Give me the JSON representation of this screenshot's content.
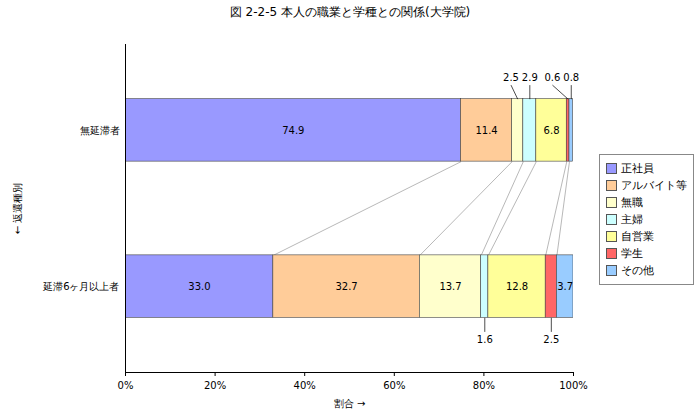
{
  "chart_data": {
    "type": "bar",
    "orientation": "horizontal",
    "stacked": true,
    "title": "図 2-2-5 本人の職業と学種との関係(大学院)",
    "x_label": "割合",
    "y_label": "返還種別",
    "categories": [
      "無延滞者",
      "延滞6ヶ月以上者"
    ],
    "series": [
      {
        "name": "正社員",
        "color": "#9999ff",
        "values": [
          74.9,
          33.0
        ],
        "value_labels": [
          "74.9",
          "33.0"
        ]
      },
      {
        "name": "アルバイト等",
        "color": "#ffcc99",
        "values": [
          11.4,
          32.7
        ],
        "value_labels": [
          "11.4",
          "32.7"
        ]
      },
      {
        "name": "無職",
        "color": "#ffffcc",
        "values": [
          2.5,
          13.7
        ],
        "value_labels": [
          "2.5",
          "13.7"
        ]
      },
      {
        "name": "主婦",
        "color": "#ccffff",
        "values": [
          2.9,
          1.6
        ],
        "value_labels": [
          "2.9",
          "1.6"
        ]
      },
      {
        "name": "自営業",
        "color": "#ffff99",
        "values": [
          6.8,
          12.8
        ],
        "value_labels": [
          "6.8",
          "12.8"
        ]
      },
      {
        "name": "学生",
        "color": "#ff6666",
        "values": [
          0.6,
          2.5
        ],
        "value_labels": [
          "0.6",
          "2.5"
        ]
      },
      {
        "name": "その他",
        "color": "#99ccff",
        "values": [
          0.8,
          3.7
        ],
        "value_labels": [
          "0.8",
          "3.7"
        ]
      }
    ],
    "xlim": [
      0,
      100
    ],
    "xticks": [
      {
        "value": 0,
        "label": "0%"
      },
      {
        "value": 20,
        "label": "20%"
      },
      {
        "value": 40,
        "label": "40%"
      },
      {
        "value": 60,
        "label": "60%"
      },
      {
        "value": 80,
        "label": "80%"
      },
      {
        "value": 100,
        "label": "100%"
      }
    ],
    "data_labels": true,
    "legend": "right"
  }
}
